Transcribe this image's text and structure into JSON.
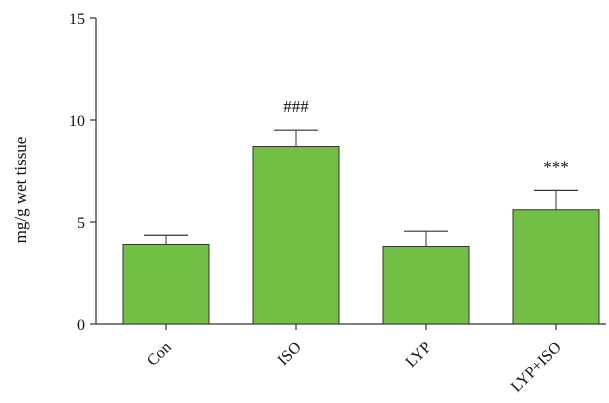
{
  "chart_data": {
    "type": "bar",
    "title": "",
    "xlabel": "",
    "ylabel": "mg/g wet tissue",
    "categories": [
      "Con",
      "ISO",
      "LYP",
      "LYP+ISO"
    ],
    "values": [
      3.9,
      8.7,
      3.8,
      5.6
    ],
    "errors": [
      0.45,
      0.8,
      0.75,
      0.95
    ],
    "annotations": [
      "",
      "###",
      "",
      "***"
    ],
    "ylim": [
      0,
      15
    ],
    "yticks": [
      0,
      5,
      10,
      15
    ],
    "grid": false,
    "colors": {
      "bar_fill": "#71bf45",
      "bar_stroke": "#333333",
      "axis": "#333333",
      "error_bar": "#333333"
    }
  }
}
